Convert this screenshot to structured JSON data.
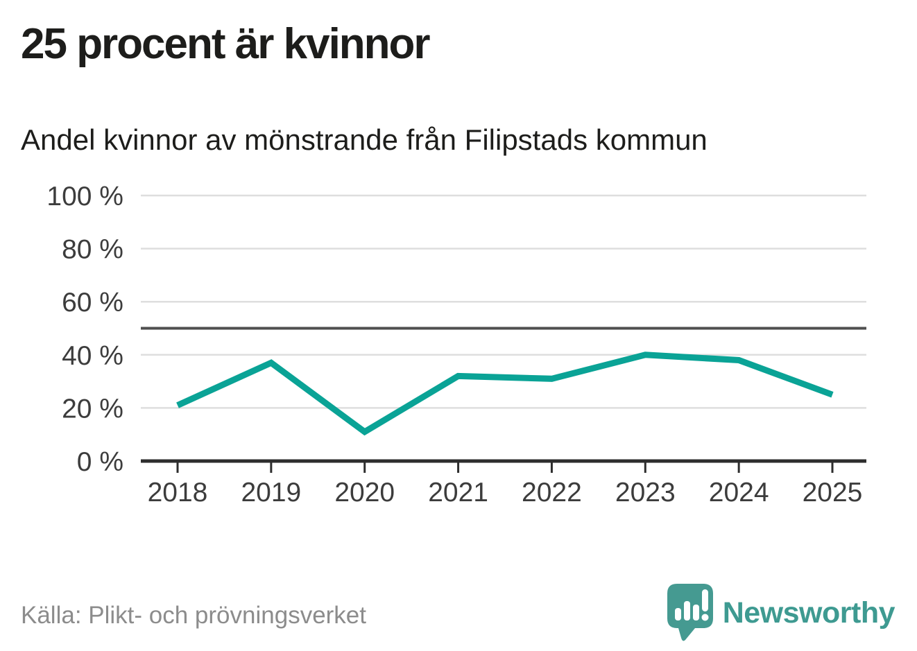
{
  "header": {
    "title": "25 procent är kvinnor",
    "subtitle": "Andel kvinnor av mönstrande från Filipstads kommun"
  },
  "footer": {
    "source": "Källa: Plikt- och prövningsverket"
  },
  "branding": {
    "name": "Newsworthy",
    "logo_icon": "newsworthy-speech-bubble-barchart-icon",
    "logo_color": "#459a91",
    "text_color": "#3e9a91"
  },
  "colors": {
    "line": "#0aa396",
    "gridline": "#dedede",
    "reference_line": "#4f4f4f",
    "axis": "#2d2d2d",
    "axis_label": "#3c3c3c",
    "title_text": "#1d1d1b",
    "source_text": "#8c8c8c"
  },
  "chart_data": {
    "type": "line",
    "title": "25 procent är kvinnor",
    "subtitle": "Andel kvinnor av mönstrande från Filipstads kommun",
    "x": [
      "2018",
      "2019",
      "2020",
      "2021",
      "2022",
      "2023",
      "2024",
      "2025"
    ],
    "series": [
      {
        "name": "Andel kvinnor av mönstrande, Filipstads kommun",
        "values": [
          21,
          37,
          11,
          32,
          31,
          40,
          38,
          25
        ],
        "unit": "%",
        "color": "#0aa396"
      }
    ],
    "ylim": [
      0,
      100
    ],
    "yticks": [
      0,
      20,
      40,
      60,
      80,
      100
    ],
    "ytick_labels": [
      "0 %",
      "20 %",
      "40 %",
      "60 %",
      "80 %",
      "100 %"
    ],
    "reference_line_value": 50,
    "grid": "horizontal",
    "legend": "none",
    "source": "Källa: Plikt- och prövningsverket"
  }
}
